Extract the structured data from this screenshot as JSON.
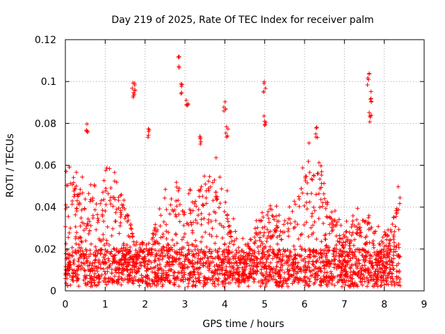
{
  "chart_data": {
    "type": "scatter",
    "title": "Day 219 of 2025, Rate Of TEC Index for receiver palm",
    "xlabel": "GPS time / hours",
    "ylabel": "ROTI / TECUs",
    "xlim": [
      0,
      9
    ],
    "ylim": [
      0,
      0.12
    ],
    "xticks": [
      0,
      1,
      2,
      3,
      4,
      5,
      6,
      7,
      8,
      9
    ],
    "yticks": [
      0,
      0.02,
      0.04,
      0.06,
      0.08,
      0.1,
      0.12
    ],
    "xtick_labels": [
      "0",
      "1",
      "2",
      "3",
      "4",
      "5",
      "6",
      "7",
      "8",
      "9"
    ],
    "ytick_labels": [
      "0",
      "0.02",
      "0.04",
      "0.06",
      "0.08",
      "0.1",
      "0.12"
    ],
    "grid": true,
    "marker": "+",
    "color": "#ff0000",
    "data_range_hours": [
      0,
      8.4
    ],
    "series": [
      {
        "name": "ROTI",
        "notable_peaks": [
          {
            "x": 0.55,
            "y": 0.08
          },
          {
            "x": 1.7,
            "y": 0.097
          },
          {
            "x": 1.72,
            "y": 0.101
          },
          {
            "x": 2.1,
            "y": 0.079
          },
          {
            "x": 2.85,
            "y": 0.112
          },
          {
            "x": 2.9,
            "y": 0.099
          },
          {
            "x": 3.05,
            "y": 0.092
          },
          {
            "x": 3.4,
            "y": 0.075
          },
          {
            "x": 4.0,
            "y": 0.091
          },
          {
            "x": 4.05,
            "y": 0.079
          },
          {
            "x": 5.0,
            "y": 0.1
          },
          {
            "x": 5.0,
            "y": 0.084
          },
          {
            "x": 6.3,
            "y": 0.079
          },
          {
            "x": 7.6,
            "y": 0.104
          },
          {
            "x": 7.65,
            "y": 0.096
          },
          {
            "x": 7.65,
            "y": 0.086
          }
        ]
      }
    ]
  }
}
